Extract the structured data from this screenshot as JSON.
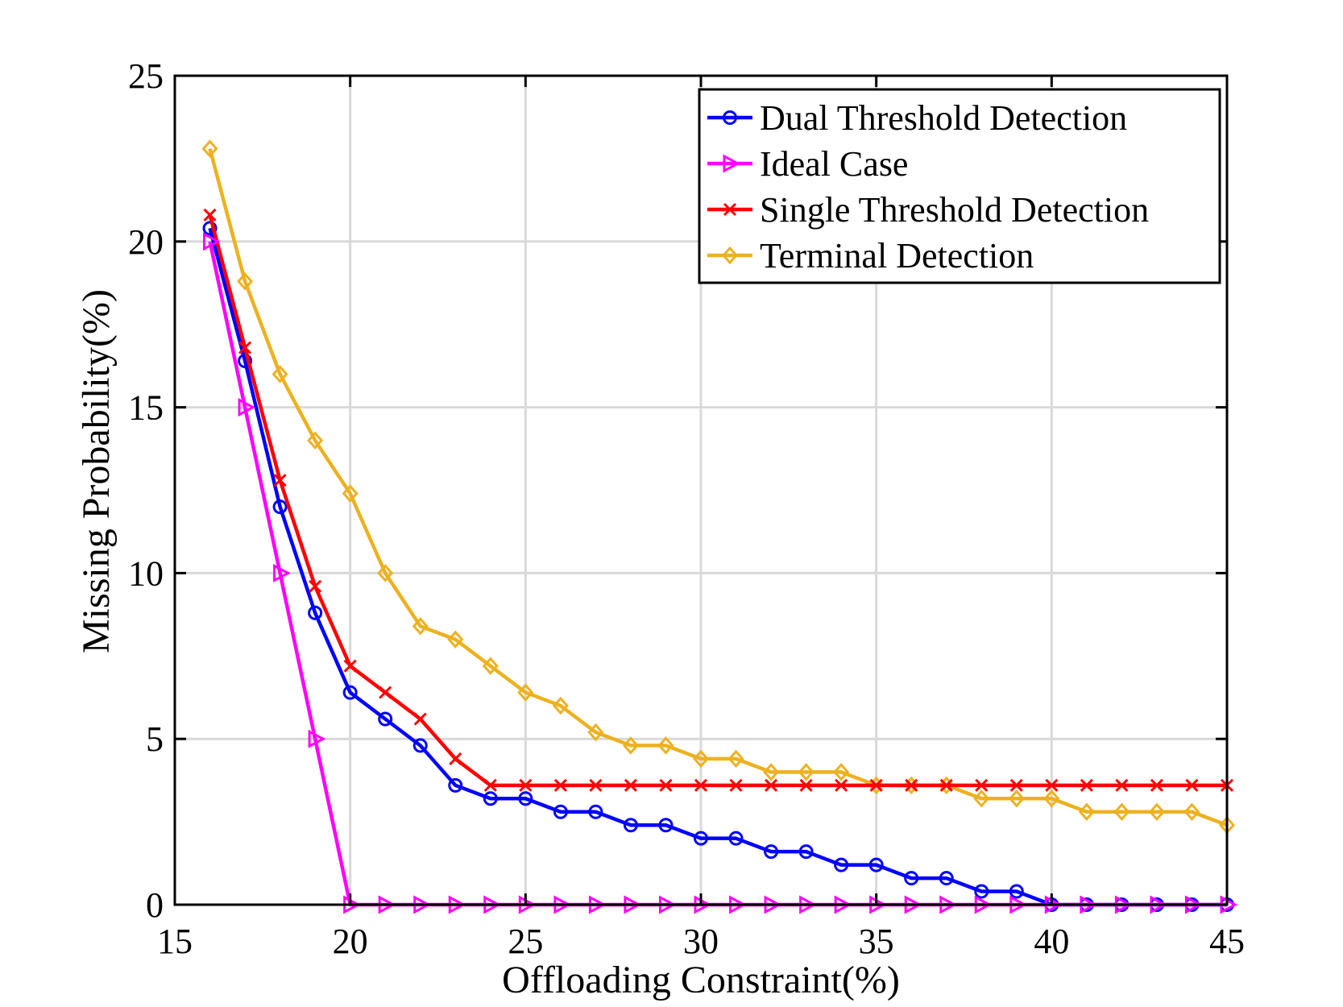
{
  "chart_data": {
    "type": "line",
    "title": "",
    "xlabel": "Offloading Constraint(%)",
    "ylabel": "Missing Probability(%)",
    "xlim": [
      15,
      45
    ],
    "ylim": [
      0,
      25
    ],
    "xticks": [
      15,
      20,
      25,
      30,
      35,
      40,
      45
    ],
    "yticks": [
      0,
      5,
      10,
      15,
      20,
      25
    ],
    "grid": true,
    "legend_position": "top-right",
    "x": [
      16,
      17,
      18,
      19,
      20,
      21,
      22,
      23,
      24,
      25,
      26,
      27,
      28,
      29,
      30,
      31,
      32,
      33,
      34,
      35,
      36,
      37,
      38,
      39,
      40,
      41,
      42,
      43,
      44,
      45
    ],
    "series": [
      {
        "name": "Dual Threshold Detection",
        "color": "#0000ff",
        "marker": "circle",
        "values": [
          20.4,
          16.4,
          12.0,
          8.8,
          6.4,
          5.6,
          4.8,
          3.6,
          3.2,
          3.2,
          2.8,
          2.8,
          2.4,
          2.4,
          2.0,
          2.0,
          1.6,
          1.6,
          1.2,
          1.2,
          0.8,
          0.8,
          0.4,
          0.4,
          0.0,
          0.0,
          0.0,
          0.0,
          0.0,
          0.0
        ]
      },
      {
        "name": "Ideal Case",
        "color": "#ff00ff",
        "marker": "triangle-right",
        "values": [
          20.0,
          15.0,
          10.0,
          5.0,
          0.0,
          0.0,
          0.0,
          0.0,
          0.0,
          0.0,
          0.0,
          0.0,
          0.0,
          0.0,
          0.0,
          0.0,
          0.0,
          0.0,
          0.0,
          0.0,
          0.0,
          0.0,
          0.0,
          0.0,
          0.0,
          0.0,
          0.0,
          0.0,
          0.0,
          0.0
        ]
      },
      {
        "name": "Single Threshold Detection",
        "color": "#ff0000",
        "marker": "x",
        "values": [
          20.8,
          16.8,
          12.8,
          9.6,
          7.2,
          6.4,
          5.6,
          4.4,
          3.6,
          3.6,
          3.6,
          3.6,
          3.6,
          3.6,
          3.6,
          3.6,
          3.6,
          3.6,
          3.6,
          3.6,
          3.6,
          3.6,
          3.6,
          3.6,
          3.6,
          3.6,
          3.6,
          3.6,
          3.6,
          3.6
        ]
      },
      {
        "name": "Terminal Detection",
        "color": "#edb120",
        "marker": "diamond",
        "values": [
          22.8,
          18.8,
          16.0,
          14.0,
          12.4,
          10.0,
          8.4,
          8.0,
          7.2,
          6.4,
          6.0,
          5.2,
          4.8,
          4.8,
          4.4,
          4.4,
          4.0,
          4.0,
          4.0,
          3.6,
          3.6,
          3.6,
          3.2,
          3.2,
          3.2,
          2.8,
          2.8,
          2.8,
          2.8,
          2.4
        ]
      }
    ]
  }
}
